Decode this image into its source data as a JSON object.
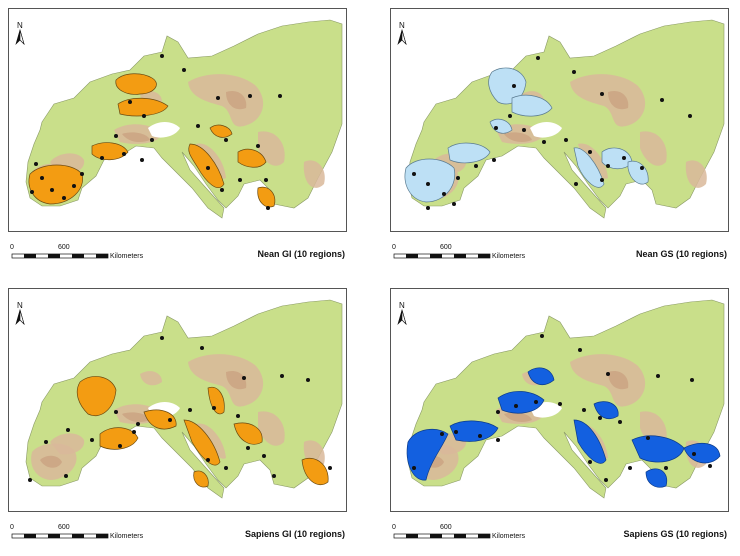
{
  "panels": [
    {
      "id": "nean-gi",
      "caption": "Nean GI (10 regions)",
      "fill": "#f39c12",
      "edge": "#6b4a10"
    },
    {
      "id": "nean-gs",
      "caption": "Nean GS (10 regions)",
      "fill": "#bde0f5",
      "edge": "#5a7b90"
    },
    {
      "id": "sapiens-gi",
      "caption": "Sapiens GI (10 regions)",
      "fill": "#f39c12",
      "edge": "#6b4a10"
    },
    {
      "id": "sapiens-gs",
      "caption": "Sapiens GS (10 regions)",
      "fill": "#1360e0",
      "edge": "#0b3b8a"
    }
  ],
  "north_label": "N",
  "scale": {
    "start": "0",
    "end": "600",
    "unit": "Kilometers"
  }
}
